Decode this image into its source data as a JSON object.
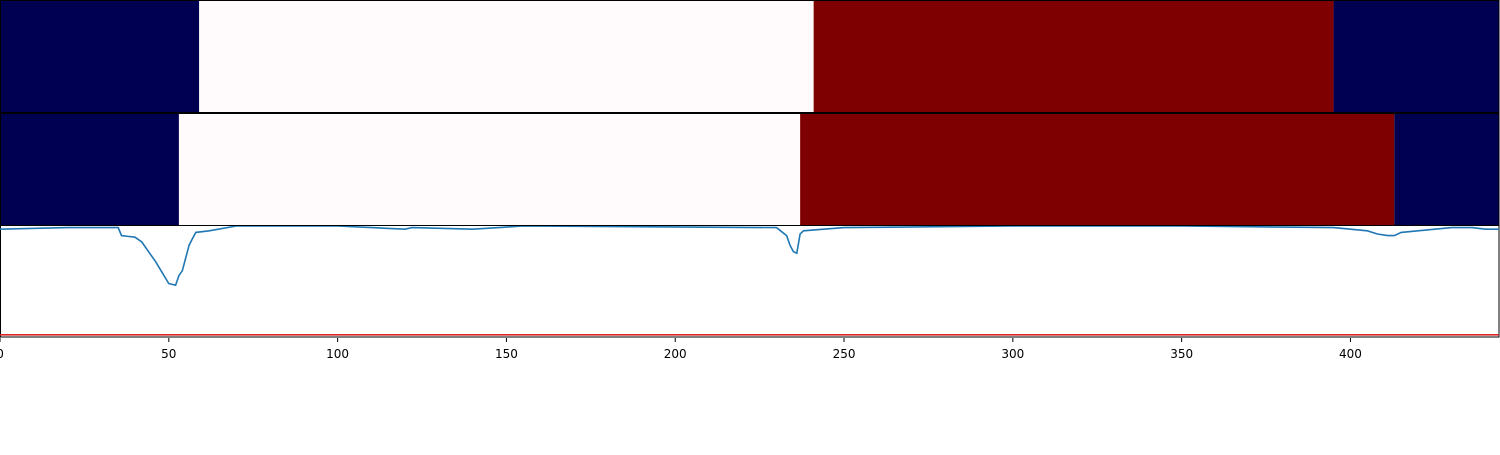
{
  "chart_data": {
    "type": "heatmap",
    "x_range": [
      0,
      444
    ],
    "x_ticks": [
      0,
      50,
      100,
      150,
      200,
      250,
      300,
      350,
      400
    ],
    "colors": {
      "low": "#000050",
      "mid": "#fffafc",
      "high": "#7f0000",
      "line": "#1f77b4",
      "threshold": "#d62728"
    },
    "heat_rows": [
      {
        "segments": [
          {
            "start": 0,
            "end": 59,
            "level": "low"
          },
          {
            "start": 59,
            "end": 241,
            "level": "mid"
          },
          {
            "start": 241,
            "end": 395,
            "level": "high"
          },
          {
            "start": 395,
            "end": 444,
            "level": "low"
          }
        ]
      },
      {
        "segments": [
          {
            "start": 0,
            "end": 53,
            "level": "low"
          },
          {
            "start": 53,
            "end": 237,
            "level": "mid"
          },
          {
            "start": 237,
            "end": 413,
            "level": "high"
          },
          {
            "start": 413,
            "end": 444,
            "level": "low"
          }
        ]
      }
    ],
    "line_series": {
      "ylim": [
        -1.0,
        0.0
      ],
      "points": [
        [
          0,
          -0.02
        ],
        [
          20,
          -0.01
        ],
        [
          35,
          -0.01
        ],
        [
          36,
          -0.06
        ],
        [
          40,
          -0.07
        ],
        [
          42,
          -0.1
        ],
        [
          44,
          -0.16
        ],
        [
          46,
          -0.22
        ],
        [
          48,
          -0.29
        ],
        [
          50,
          -0.36
        ],
        [
          52,
          -0.37
        ],
        [
          53,
          -0.31
        ],
        [
          54,
          -0.28
        ],
        [
          55,
          -0.2
        ],
        [
          56,
          -0.12
        ],
        [
          57,
          -0.08
        ],
        [
          58,
          -0.04
        ],
        [
          62,
          -0.03
        ],
        [
          70,
          0.0
        ],
        [
          100,
          0.0
        ],
        [
          110,
          -0.01
        ],
        [
          120,
          -0.02
        ],
        [
          122,
          -0.01
        ],
        [
          140,
          -0.02
        ],
        [
          155,
          0.0
        ],
        [
          230,
          -0.01
        ],
        [
          233,
          -0.06
        ],
        [
          234,
          -0.12
        ],
        [
          235,
          -0.16
        ],
        [
          236,
          -0.17
        ],
        [
          237,
          -0.05
        ],
        [
          238,
          -0.03
        ],
        [
          250,
          -0.01
        ],
        [
          300,
          0.0
        ],
        [
          350,
          0.0
        ],
        [
          395,
          -0.01
        ],
        [
          400,
          -0.02
        ],
        [
          405,
          -0.03
        ],
        [
          408,
          -0.05
        ],
        [
          411,
          -0.06
        ],
        [
          413,
          -0.06
        ],
        [
          415,
          -0.04
        ],
        [
          420,
          -0.03
        ],
        [
          425,
          -0.02
        ],
        [
          430,
          -0.01
        ],
        [
          436,
          -0.01
        ],
        [
          440,
          -0.02
        ],
        [
          444,
          -0.02
        ]
      ]
    },
    "threshold_y": -0.68
  }
}
